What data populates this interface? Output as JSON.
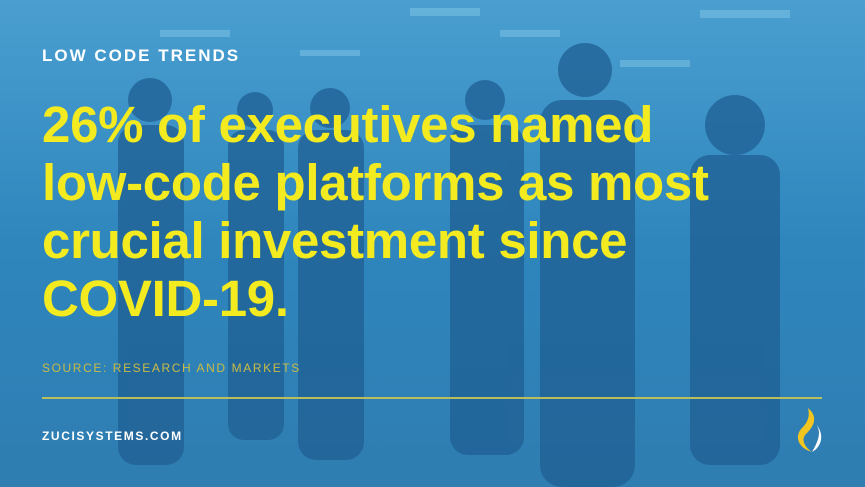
{
  "header": {
    "kicker": "LOW CODE TRENDS"
  },
  "headline": {
    "lines": [
      "26% of executives named",
      "low-code platforms as most",
      "crucial investment since",
      "COVID-19."
    ]
  },
  "source": "SOURCE: RESEARCH AND MARKETS",
  "footer": {
    "website": "ZUCISYSTEMS.COM"
  }
}
